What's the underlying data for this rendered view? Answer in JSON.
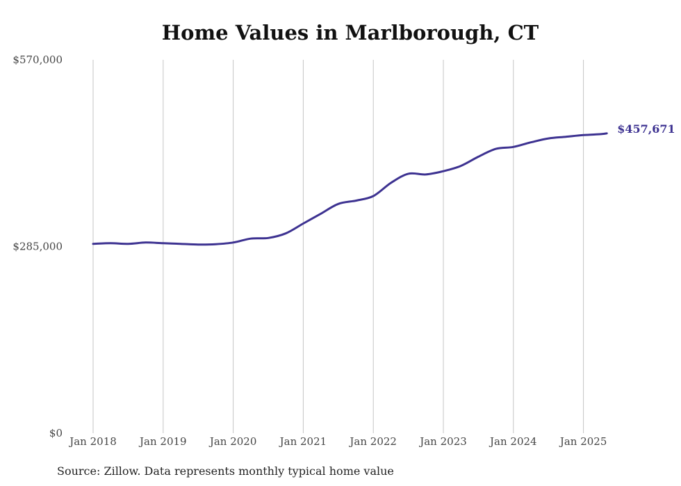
{
  "chart_data": {
    "type": "line",
    "title": "Home Values in Marlborough, CT",
    "source": "Source: Zillow. Data represents monthly typical home value",
    "ylim": [
      0,
      570000
    ],
    "y_ticks": [
      {
        "value": 0,
        "label": "$0"
      },
      {
        "value": 285000,
        "label": "$285,000"
      },
      {
        "value": 570000,
        "label": "$570,000"
      }
    ],
    "x_ticks": [
      "Jan 2018",
      "Jan 2019",
      "Jan 2020",
      "Jan 2021",
      "Jan 2022",
      "Jan 2023",
      "Jan 2024",
      "Jan 2025"
    ],
    "x_range": [
      "2018-01",
      "2025-05"
    ],
    "grid": "vertical",
    "line_color": "#3d3291",
    "end_label": "$457,671",
    "series": [
      {
        "x": [
          "2018-01",
          "2018-04",
          "2018-07",
          "2018-10",
          "2019-01",
          "2019-04",
          "2019-07",
          "2019-10",
          "2020-01",
          "2020-04",
          "2020-07",
          "2020-10",
          "2021-01",
          "2021-04",
          "2021-07",
          "2021-10",
          "2022-01",
          "2022-04",
          "2022-07",
          "2022-10",
          "2023-01",
          "2023-04",
          "2023-07",
          "2023-10",
          "2024-01",
          "2024-04",
          "2024-07",
          "2024-10",
          "2025-01",
          "2025-04",
          "2025-05"
        ],
        "y": [
          289000,
          290000,
          289000,
          291000,
          290000,
          289000,
          288000,
          288500,
          291000,
          297000,
          298000,
          305000,
          320000,
          335000,
          350000,
          355000,
          362000,
          382000,
          396000,
          395000,
          400000,
          408000,
          422000,
          434000,
          437000,
          444000,
          450000,
          452500,
          455000,
          456500,
          457671
        ]
      }
    ]
  }
}
